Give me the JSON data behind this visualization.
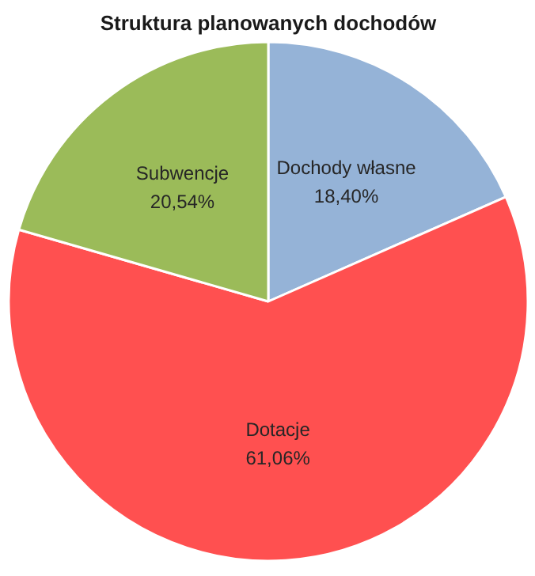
{
  "chart_data": {
    "type": "pie",
    "title": "Struktura planowanych dochodów",
    "categories": [
      "Dochody własne",
      "Dotacje",
      "Subwencje"
    ],
    "values": [
      18.4,
      61.06,
      20.54
    ],
    "colors": [
      "#95b3d7",
      "#ff5050",
      "#9bbb59"
    ],
    "value_labels": [
      "18,40%",
      "61,06%",
      "20,54%"
    ],
    "legend": false
  }
}
